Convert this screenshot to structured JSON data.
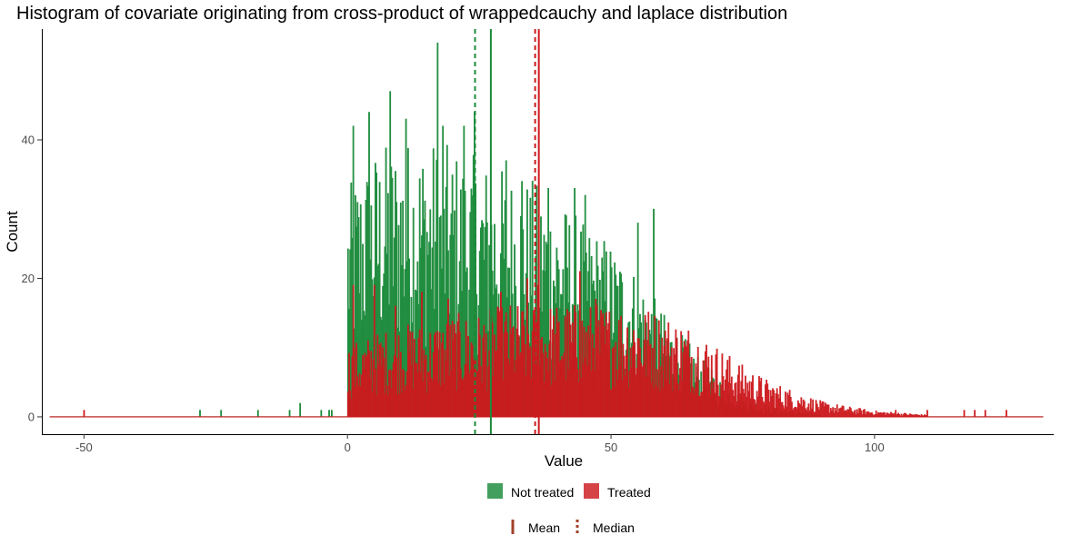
{
  "chart_data": {
    "type": "histogram",
    "title": "Histogram of covariate originating from cross-product of wrappedcauchy and laplace distribution",
    "xlabel": "Value",
    "ylabel": "Count",
    "xlim": [
      -58,
      134
    ],
    "ylim": [
      -2.5,
      56
    ],
    "xticks": [
      -50,
      0,
      50,
      100
    ],
    "yticks": [
      0,
      20,
      40
    ],
    "grid": false,
    "legend_position": "bottom",
    "bin_width": 0.2,
    "colors": {
      "not_treated": "#1a8a3a",
      "treated": "#cc1a1e",
      "lines_legend": "#a0422a"
    },
    "legend": {
      "fill": [
        {
          "label": "Not treated",
          "color": "#1a8a3a"
        },
        {
          "label": "Treated",
          "color": "#cc1a1e"
        }
      ],
      "lines": [
        {
          "label": "Mean",
          "style": "solid"
        },
        {
          "label": "Median",
          "style": "dashed"
        }
      ]
    },
    "series": [
      {
        "name": "Not treated",
        "color": "#1a8a3a",
        "profile_x": [
          0,
          2,
          5,
          10,
          15,
          20,
          25,
          30,
          35,
          40,
          45,
          50,
          55,
          60,
          65,
          70,
          75,
          80,
          85,
          90
        ],
        "profile_y": [
          22,
          24,
          26,
          27,
          27,
          26,
          25,
          24,
          23,
          21,
          19,
          17,
          14,
          10,
          7,
          4,
          2,
          1,
          0.5,
          0.3
        ],
        "peaks": [
          [
            1,
            42
          ],
          [
            4,
            44
          ],
          [
            8,
            47
          ],
          [
            11,
            43
          ],
          [
            17,
            54
          ],
          [
            18,
            42
          ],
          [
            22,
            42
          ],
          [
            24,
            44
          ],
          [
            30,
            37
          ],
          [
            33,
            34
          ],
          [
            38,
            33
          ],
          [
            43,
            33
          ],
          [
            45,
            32
          ],
          [
            55,
            28
          ],
          [
            58,
            30
          ]
        ],
        "outliers": [
          [
            -28,
            1
          ],
          [
            -24,
            1
          ],
          [
            -17,
            1
          ],
          [
            -11,
            1
          ],
          [
            -9,
            2
          ],
          [
            -5,
            1
          ],
          [
            -3.5,
            1
          ],
          [
            -3,
            1
          ]
        ],
        "mean": 27.2,
        "median": 24.2
      },
      {
        "name": "Treated",
        "color": "#cc1a1e",
        "profile_x": [
          0,
          5,
          10,
          15,
          20,
          25,
          30,
          35,
          40,
          45,
          50,
          55,
          60,
          65,
          70,
          75,
          80,
          85,
          90,
          95,
          100,
          105,
          110
        ],
        "profile_y": [
          7,
          8,
          9,
          9,
          10,
          10,
          11,
          11,
          11,
          11,
          11,
          11,
          10,
          9,
          7,
          5,
          3.5,
          2.5,
          1.5,
          1,
          0.6,
          0.4,
          0.2
        ],
        "peaks": [
          [
            1,
            19
          ],
          [
            5,
            19
          ],
          [
            9,
            16
          ],
          [
            14,
            18
          ],
          [
            19,
            17
          ],
          [
            29,
            18
          ],
          [
            34,
            20
          ],
          [
            36,
            19
          ],
          [
            44,
            21
          ],
          [
            47,
            17
          ]
        ],
        "outliers": [
          [
            -50,
            1
          ],
          [
            104,
            1
          ],
          [
            110,
            1
          ],
          [
            117,
            1
          ],
          [
            119,
            1
          ],
          [
            121,
            1
          ],
          [
            125,
            1
          ]
        ],
        "mean": 36.3,
        "median": 35.6
      }
    ]
  }
}
